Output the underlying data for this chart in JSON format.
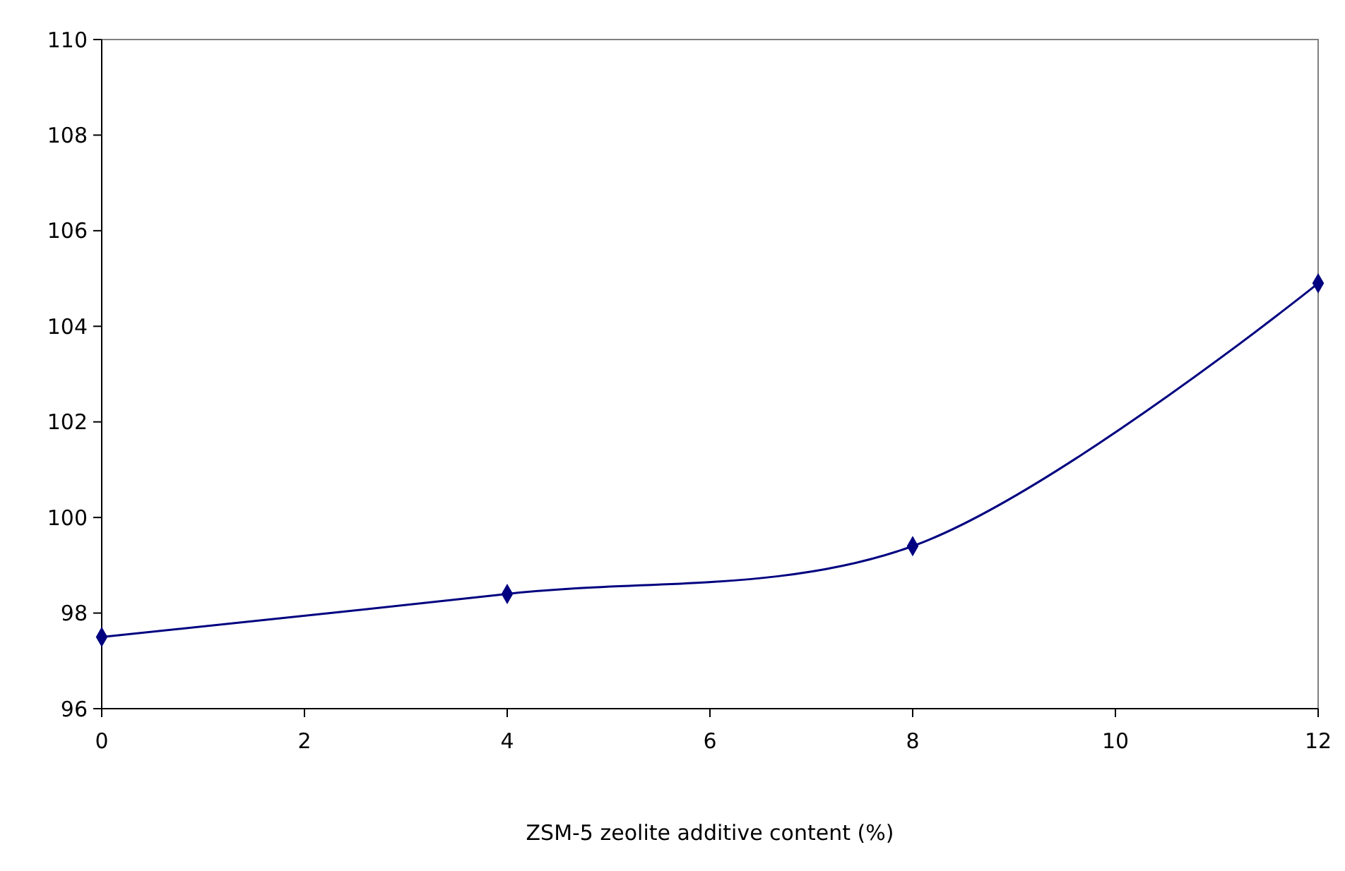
{
  "chart_data": {
    "type": "line",
    "xlabel": "ZSM-5 zeolite additive content (%)",
    "x": [
      0,
      4,
      8,
      12
    ],
    "series": [
      {
        "color": "#000080",
        "values": [
          97.5,
          98.4,
          99.4,
          104.9
        ]
      }
    ],
    "xlim": [
      0,
      12
    ],
    "xticks": [
      0,
      2,
      4,
      6,
      8,
      10,
      12
    ],
    "ylim": [
      96,
      110
    ],
    "yticks": [
      96,
      98,
      100,
      102,
      104,
      106,
      108,
      110
    ],
    "marker": "diamond",
    "line_style": "solid",
    "grid": false
  }
}
